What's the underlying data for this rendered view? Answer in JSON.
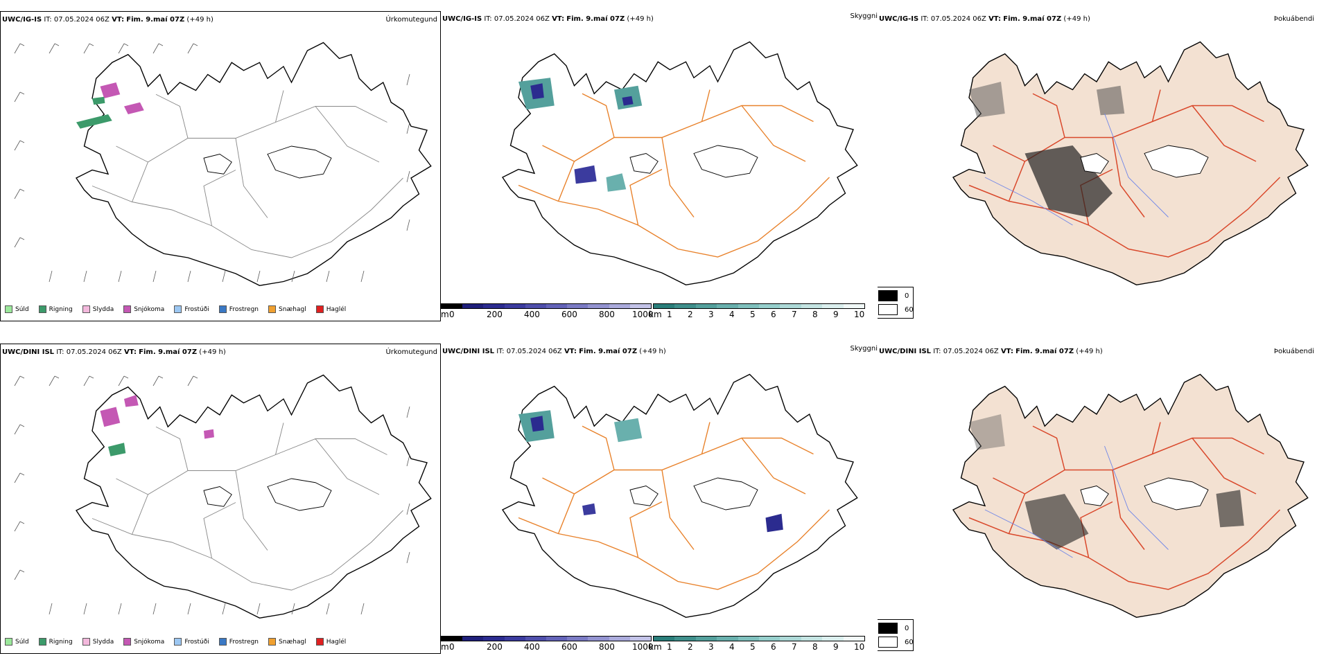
{
  "colors": {
    "coast": "#000000",
    "roads": "#e8812a",
    "roads_red": "#d9482b",
    "rivers": "#6f86e8",
    "fog_fill": "#f3e1d2",
    "snow": "#c458b4",
    "rain": "#3c9a6a"
  },
  "rows": [
    {
      "model": "UWC/IG-IS",
      "it_label": "IT:",
      "it_value": "07.05.2024 06Z",
      "vt_label": "VT:",
      "vt_value": "Fim. 9.maí 07Z",
      "lead": "(+49 h)"
    },
    {
      "model": "UWC/DINI ISL",
      "it_label": "IT:",
      "it_value": "07.05.2024 06Z",
      "vt_label": "VT:",
      "vt_value": "Fim. 9.maí 07Z",
      "lead": "(+49 h)"
    }
  ],
  "panels": {
    "precip_type": "Úrkomutegund",
    "visibility": "Skyggni",
    "fog": "Þokuábendi"
  },
  "precip_legend": [
    {
      "label": "Súld",
      "color": "#9be89b"
    },
    {
      "label": "Rigning",
      "color": "#3c9a6a"
    },
    {
      "label": "Slydda",
      "color": "#f3b8dc"
    },
    {
      "label": "Snjókoma",
      "color": "#c458b4"
    },
    {
      "label": "Frostúði",
      "color": "#9cc7f2"
    },
    {
      "label": "Frostregn",
      "color": "#3a78c4"
    },
    {
      "label": "Snæhagl",
      "color": "#f0a030"
    },
    {
      "label": "Haglél",
      "color": "#e02020"
    }
  ],
  "vis_bar_m": {
    "unit": "m",
    "ticks": [
      "0",
      "200",
      "400",
      "600",
      "800",
      "1000"
    ],
    "colors": [
      "#000000",
      "#1f1f7a",
      "#2b2b8f",
      "#3b3b9e",
      "#4f4fab",
      "#6363b8",
      "#7b7bc4",
      "#9393d0",
      "#ababdc",
      "#c3c3e8"
    ]
  },
  "vis_bar_km": {
    "unit": "km",
    "ticks": [
      "1",
      "2",
      "3",
      "4",
      "5",
      "6",
      "7",
      "8",
      "9",
      "10"
    ],
    "colors": [
      "#2a7e7a",
      "#3f8f8b",
      "#54a09c",
      "#69b0ad",
      "#7fc0bd",
      "#96cfcc",
      "#add9d7",
      "#c4e4e2",
      "#dbefee",
      "#f1f9f8"
    ]
  },
  "fog_legend": [
    {
      "label": "0",
      "color": "#000000"
    },
    {
      "label": "60",
      "color": "#ffffff"
    }
  ]
}
